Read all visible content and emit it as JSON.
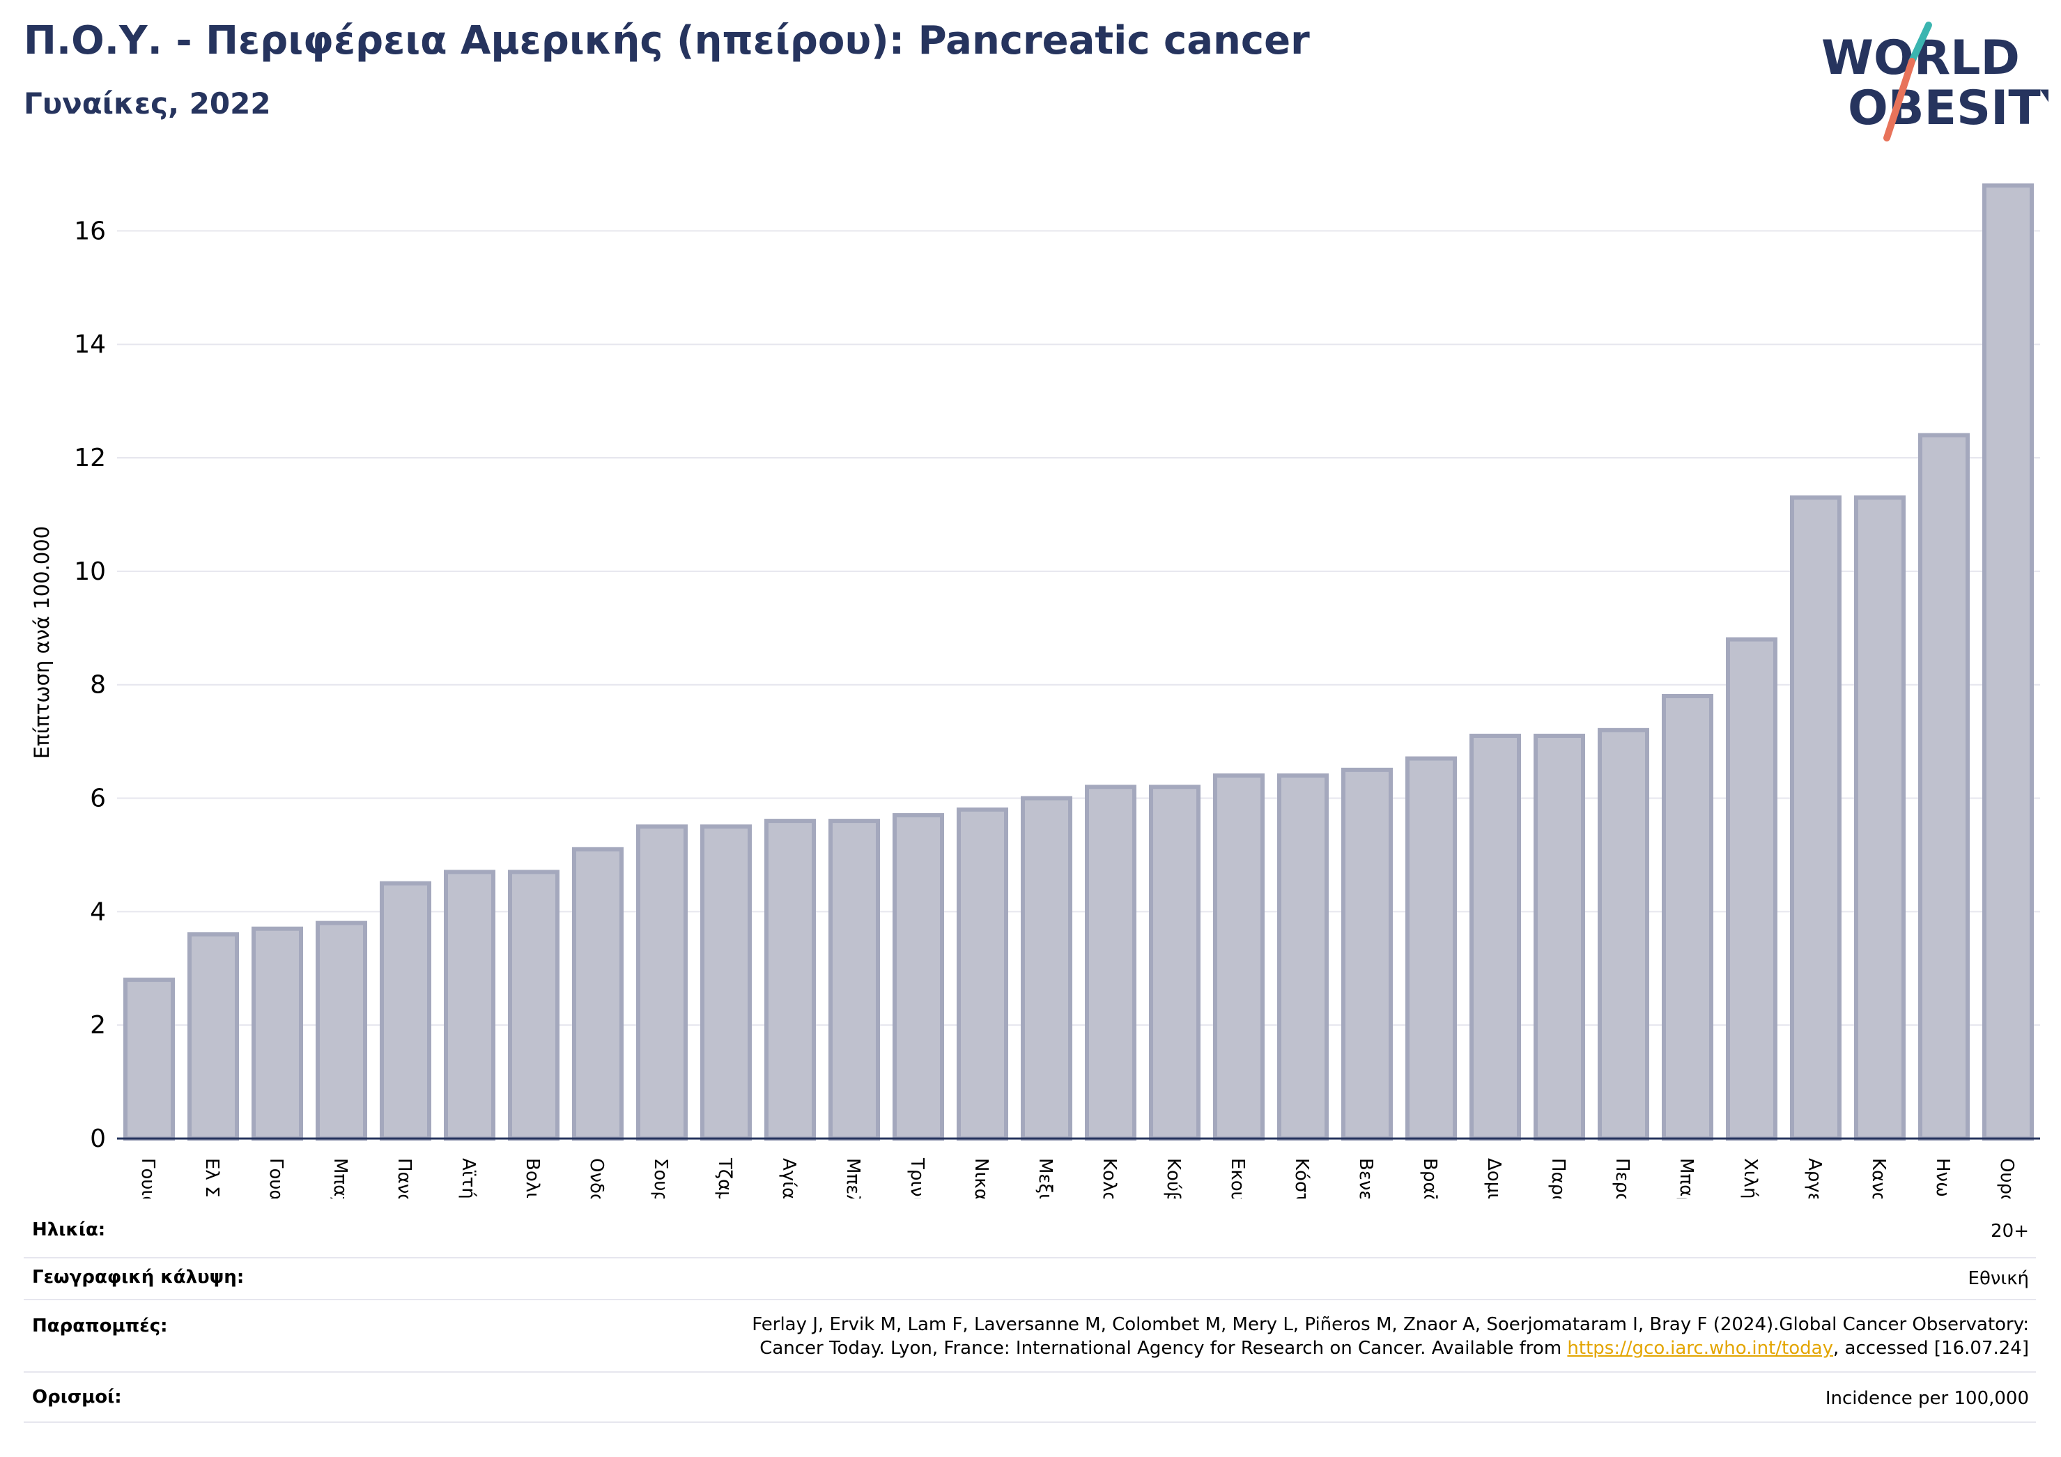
{
  "header": {
    "title": "Π.Ο.Υ. - Περιφέρεια Αμερικής (ηπείρου): Pancreatic cancer",
    "subtitle": "Γυναίκες, 2022"
  },
  "logo": {
    "line1": "WORLD",
    "line2": "OBESITY",
    "accent_teal": "#3bb5b0",
    "accent_coral": "#e8735a"
  },
  "colors": {
    "bar_fill": "#bfc1ce",
    "bar_stroke": "#a4a8bd",
    "title": "#26345e",
    "axis": "#26345e",
    "grid": "#e6e6ee"
  },
  "chart_data": {
    "type": "bar",
    "ylabel": "Επίπτωση ανά 100.000",
    "ylim": [
      0,
      17
    ],
    "yticks": [
      0,
      2,
      4,
      6,
      8,
      10,
      12,
      14,
      16
    ],
    "grid": true,
    "categories": [
      "Γουιάνα",
      "Ελ Σαλβαδόρ",
      "Γουατεμάλα",
      "Μπαχάμες",
      "Παναμάς",
      "Αϊτή",
      "Βολιβία",
      "Ονδούρα",
      "Σουρινάμ",
      "Τζαμάικα",
      "Αγία Λουκία",
      "Μπελίζ",
      "Τρινιντάντ και Τομπάγκο",
      "Νικαράγουα",
      "Μεξικό",
      "Κολομβία",
      "Κούβα",
      "Εκουαδόρ",
      "Κόστα Ρίκα",
      "Βενεζουέλα",
      "Βραζιλία",
      "Δομινικανή Δημοκρατία",
      "Παραγουάη",
      "Περού",
      "Μπαρμπάντος",
      "Χιλή",
      "Αργεντινή",
      "Καναδάς",
      "Ηνωμένες Πολιτείες",
      "Ουρουγουάη"
    ],
    "values": [
      2.8,
      3.6,
      3.7,
      3.8,
      4.5,
      4.7,
      4.7,
      5.1,
      5.5,
      5.5,
      5.6,
      5.6,
      5.7,
      5.8,
      6.0,
      6.2,
      6.2,
      6.4,
      6.4,
      6.5,
      6.7,
      7.1,
      7.1,
      7.2,
      7.8,
      8.8,
      11.3,
      11.3,
      12.4,
      16.8
    ]
  },
  "meta": {
    "age": {
      "label": "Ηλικία:",
      "value": "20+"
    },
    "coverage": {
      "label": "Γεωγραφική κάλυψη:",
      "value": "Εθνική"
    },
    "references": {
      "label": "Παραπομπές:",
      "line1": "Ferlay J, Ervik M, Lam F, Laversanne M, Colombet M, Mery L, Piñeros M, Znaor A, Soerjomataram I, Bray F (2024).Global Cancer Observatory:",
      "line2_pre": "Cancer Today. Lyon, France: International Agency for Research on Cancer. Available from ",
      "link": "https://gco.iarc.who.int/today",
      "line2_post": ", accessed [16.07.24]"
    },
    "definitions": {
      "label": "Ορισμοί:",
      "value": "Incidence per 100,000"
    }
  }
}
